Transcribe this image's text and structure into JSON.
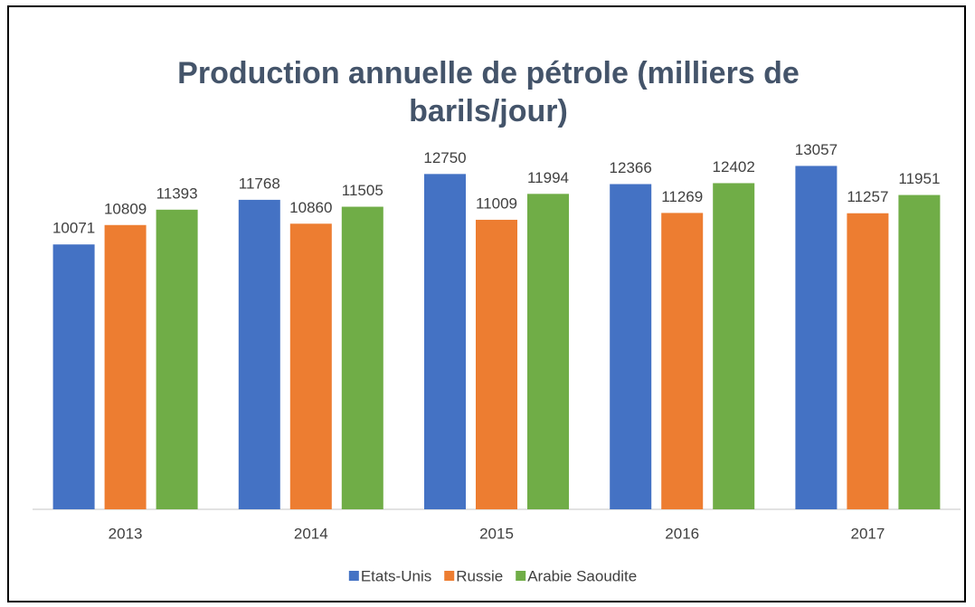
{
  "chart_data": {
    "type": "bar",
    "title": "Production annuelle de pétrole (milliers de barils/jour)",
    "categories": [
      "2013",
      "2014",
      "2015",
      "2016",
      "2017"
    ],
    "series": [
      {
        "name": "Etats-Unis",
        "color": "#4472c4",
        "values": [
          10071,
          11768,
          12750,
          12366,
          13057
        ]
      },
      {
        "name": "Russie",
        "color": "#ed7d31",
        "values": [
          10809,
          10860,
          11009,
          11269,
          11257
        ]
      },
      {
        "name": "Arabie Saoudite",
        "color": "#70ad47",
        "values": [
          11393,
          11505,
          11994,
          12402,
          11951
        ]
      }
    ],
    "ylim": [
      0,
      14000
    ],
    "legend": "bottom"
  }
}
